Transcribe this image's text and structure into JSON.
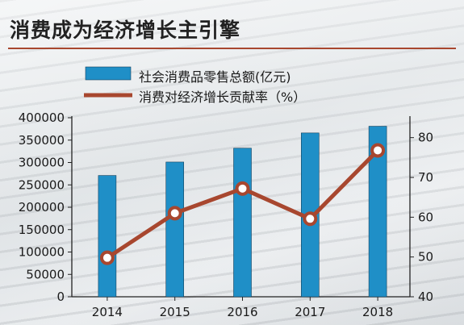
{
  "title": "消费成为经济增长主引擎",
  "chart_data": {
    "type": "bar+line",
    "categories": [
      "2014",
      "2015",
      "2016",
      "2017",
      "2018"
    ],
    "series": [
      {
        "name": "社会消费品零售总额(亿元)",
        "type": "bar",
        "axis": "left",
        "values": [
          271000,
          301000,
          332000,
          366000,
          381000
        ],
        "color": "#1f8fc7"
      },
      {
        "name": "消费对经济增长贡献率（%）",
        "type": "line",
        "axis": "right",
        "values": [
          49.8,
          61.0,
          67.2,
          59.6,
          76.8
        ],
        "color": "#a8472f"
      }
    ],
    "y_left": {
      "ylim": [
        0,
        400000
      ],
      "ticks": [
        "0",
        "50000",
        "100000",
        "150000",
        "200000",
        "250000",
        "300000",
        "350000",
        "400000"
      ]
    },
    "y_right": {
      "ylim": [
        40,
        85
      ],
      "ticks": [
        "40",
        "50",
        "60",
        "70",
        "80"
      ]
    },
    "legend": "top",
    "grid": false
  }
}
